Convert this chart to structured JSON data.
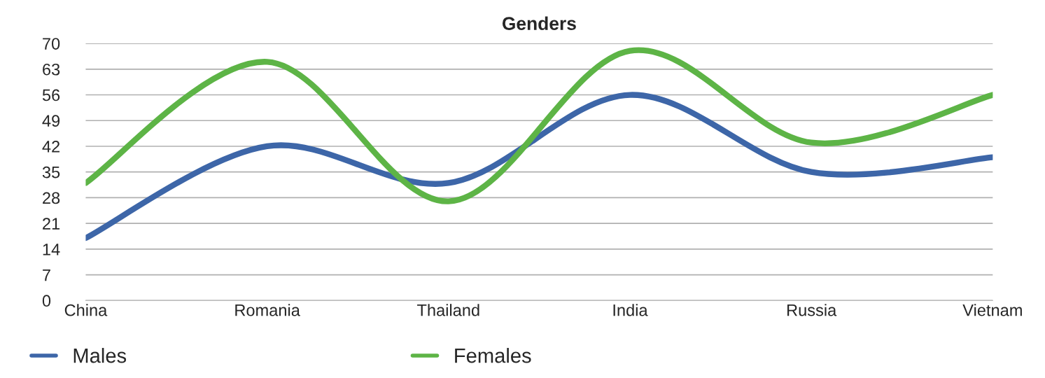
{
  "chart_data": {
    "type": "line",
    "title": "Genders",
    "categories": [
      "China",
      "Romania",
      "Thailand",
      "India",
      "Russia",
      "Vietnam"
    ],
    "series": [
      {
        "name": "Males",
        "color": "#3d66a8",
        "values": [
          17,
          42,
          32,
          56,
          35,
          39
        ]
      },
      {
        "name": "Females",
        "color": "#5db446",
        "values": [
          32,
          65,
          27,
          68,
          43,
          56
        ]
      }
    ],
    "ylim": [
      0,
      70
    ],
    "yticks": [
      0,
      7,
      14,
      21,
      28,
      35,
      42,
      49,
      56,
      63,
      70
    ],
    "grid": "y",
    "legend": "bottom left",
    "marker": "none",
    "line_style": "solid"
  }
}
